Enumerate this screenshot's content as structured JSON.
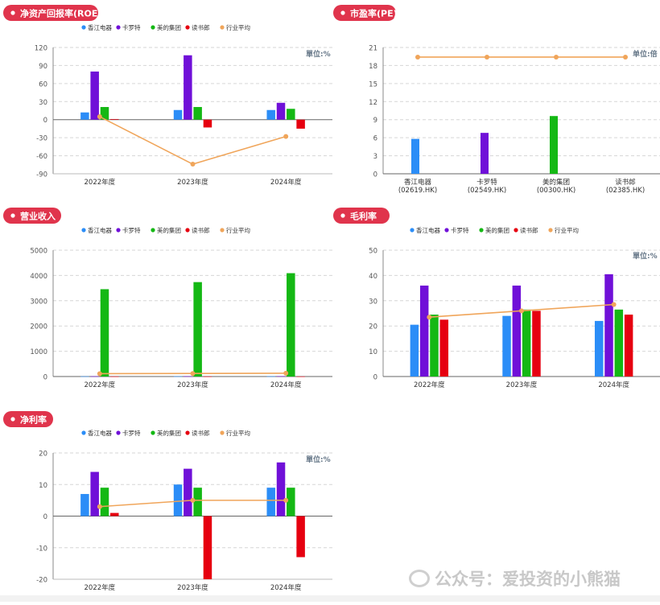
{
  "palette": {
    "xiangjiang": "#2b8df7",
    "carote": "#7010d8",
    "midea": "#14b814",
    "dushulang": "#e60010",
    "industry_avg": "#f0a55a",
    "title_badge": "#e0344c",
    "axis_text": "#555555",
    "unit_text": "#667788",
    "gridline": "#d6d6d6"
  },
  "legend_labels": [
    "香江电器",
    "卡罗特",
    "美的集团",
    "读书郎",
    "行业平均"
  ],
  "watermark": "公众号：爱投资的小熊猫",
  "chart_data": [
    {
      "id": "roe",
      "type": "bar",
      "title": "净资产回报率(ROE)",
      "unit": "單位:%",
      "categories": [
        "2022年度",
        "2023年度",
        "2024年度"
      ],
      "ylim": [
        -90,
        120
      ],
      "yticks": [
        120,
        90,
        60,
        30,
        0,
        -30,
        -60,
        -90
      ],
      "grid": true,
      "legend": "top",
      "series": [
        {
          "name": "香江电器",
          "values": [
            12,
            16,
            16
          ]
        },
        {
          "name": "卡罗特",
          "values": [
            80,
            107,
            28
          ]
        },
        {
          "name": "美的集团",
          "values": [
            21,
            21,
            18
          ]
        },
        {
          "name": "读书郎",
          "values": [
            1,
            -13,
            -15
          ]
        }
      ],
      "line": {
        "name": "行业平均",
        "values": [
          5,
          -74,
          -28
        ]
      }
    },
    {
      "id": "pe",
      "type": "bar",
      "title": "市盈率(PE)",
      "unit": "单位:倍",
      "categories": [
        "香江电器\n(02619.HK)",
        "卡罗特\n(02549.HK)",
        "美的集团\n(00300.HK)",
        "读书郎\n(02385.HK)"
      ],
      "ylim": [
        0,
        21
      ],
      "yticks": [
        21,
        18,
        15,
        12,
        9,
        6,
        3,
        0
      ],
      "grid": true,
      "legend": "none",
      "bars": [
        5.8,
        6.8,
        9.6,
        0
      ],
      "line": {
        "name": "行业平均",
        "values": [
          19.4,
          19.4,
          19.4,
          19.4
        ]
      }
    },
    {
      "id": "revenue",
      "type": "bar",
      "title": "营业收入",
      "unit": "",
      "categories": [
        "2022年度",
        "2023年度",
        "2024年度"
      ],
      "ylim": [
        0,
        5000
      ],
      "yticks": [
        5000,
        4000,
        3000,
        2000,
        1000,
        0
      ],
      "grid": true,
      "legend": "top",
      "series": [
        {
          "name": "香江电器",
          "values": [
            8,
            9,
            10
          ]
        },
        {
          "name": "卡罗特",
          "values": [
            9,
            11,
            14
          ]
        },
        {
          "name": "美的集团",
          "values": [
            3457,
            3737,
            4091
          ]
        },
        {
          "name": "读书郎",
          "values": [
            4,
            3,
            3
          ]
        }
      ],
      "line": {
        "name": "行业平均",
        "values": [
          112,
          120,
          130
        ]
      }
    },
    {
      "id": "gross",
      "type": "bar",
      "title": "毛利率",
      "unit": "單位:%",
      "categories": [
        "2022年度",
        "2023年度",
        "2024年度"
      ],
      "ylim": [
        0,
        50
      ],
      "yticks": [
        50,
        40,
        30,
        20,
        10,
        0
      ],
      "grid": true,
      "legend": "top",
      "series": [
        {
          "name": "香江电器",
          "values": [
            20.5,
            24,
            22
          ]
        },
        {
          "name": "卡罗特",
          "values": [
            36,
            36,
            40.5
          ]
        },
        {
          "name": "美的集团",
          "values": [
            24.5,
            26.5,
            26.5
          ]
        },
        {
          "name": "读书郎",
          "values": [
            22.5,
            26,
            24.5
          ]
        }
      ],
      "line": {
        "name": "行业平均",
        "values": [
          23.5,
          26,
          28.5
        ]
      }
    },
    {
      "id": "net",
      "type": "bar",
      "title": "净利率",
      "unit": "單位:%",
      "categories": [
        "2022年度",
        "2023年度",
        "2024年度"
      ],
      "ylim": [
        -20,
        20
      ],
      "yticks": [
        20,
        10,
        0,
        -10,
        -20
      ],
      "grid": true,
      "legend": "top",
      "series": [
        {
          "name": "香江电器",
          "values": [
            7,
            10,
            9
          ]
        },
        {
          "name": "卡罗特",
          "values": [
            14,
            15,
            17
          ]
        },
        {
          "name": "美的集团",
          "values": [
            9,
            9,
            9
          ]
        },
        {
          "name": "读书郎",
          "values": [
            1,
            -20,
            -13
          ]
        }
      ],
      "line": {
        "name": "行业平均",
        "values": [
          3,
          5,
          5
        ]
      }
    }
  ]
}
